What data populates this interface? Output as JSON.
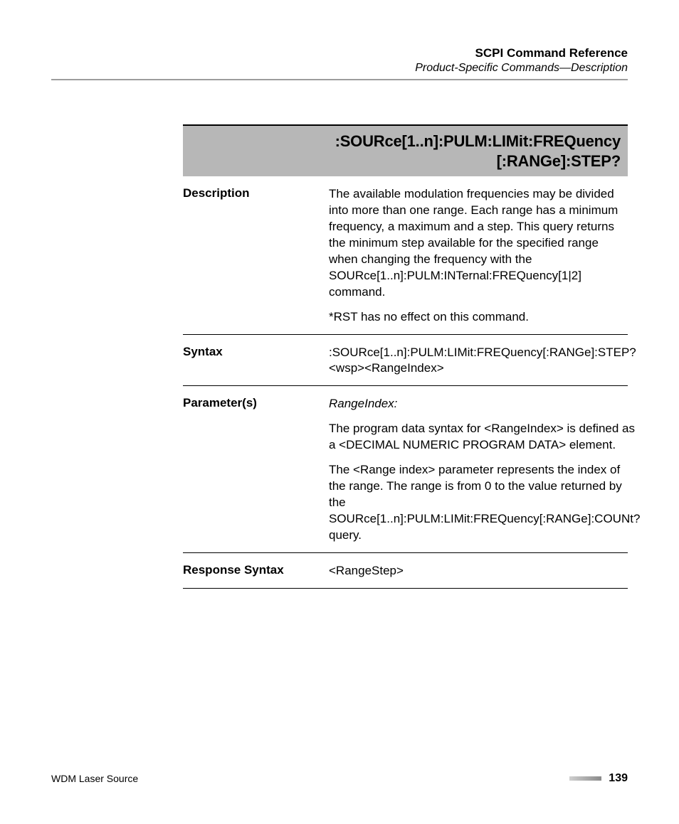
{
  "header": {
    "title": "SCPI Command Reference",
    "subtitle": "Product-Specific Commands—Description"
  },
  "command": {
    "line1": ":SOURce[1..n]:PULM:LIMit:FREQuency",
    "line2": "[:RANGe]:STEP?"
  },
  "description": {
    "label": "Description",
    "p1": "The available modulation frequencies may be divided into more than one range. Each range has a minimum frequency, a maximum and a step. This query returns the minimum step available for the specified range when changing the frequency with the SOURce[1..n]:PULM:INTernal:FREQuency[1|2] command.",
    "p2": "*RST has no effect on this command."
  },
  "syntax": {
    "label": "Syntax",
    "p1": ":SOURce[1..n]:PULM:LIMit:FREQuency[:RANGe]:STEP?<wsp><RangeIndex>"
  },
  "parameters": {
    "label": "Parameter(s)",
    "param_name": "RangeIndex:",
    "p1": "The program data syntax for <RangeIndex> is defined as a <DECIMAL NUMERIC PROGRAM DATA> element.",
    "p2": "The <Range index> parameter represents the index of the range.  The range is from 0 to the value returned by the SOURce[1..n]:PULM:LIMit:FREQuency[:RANGe]:COUNt? query."
  },
  "response": {
    "label": "Response Syntax",
    "p1": "<RangeStep>"
  },
  "footer": {
    "left": "WDM Laser Source",
    "page": "139"
  }
}
